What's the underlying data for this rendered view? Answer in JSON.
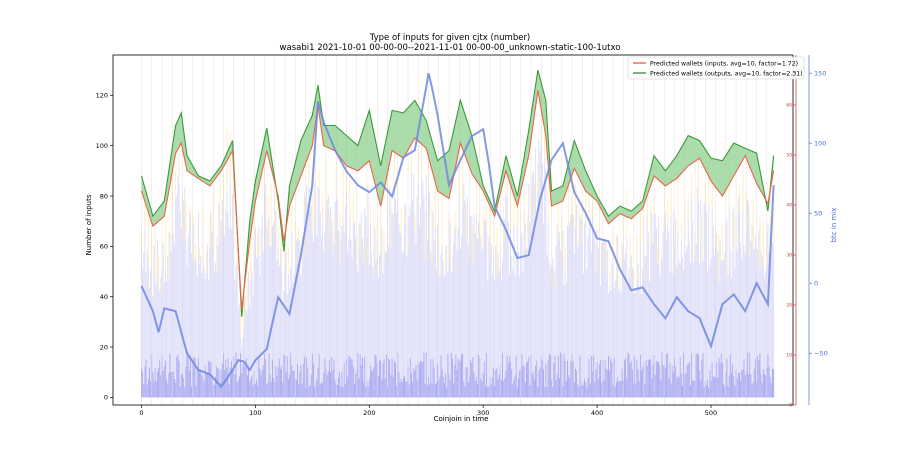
{
  "chart_data": {
    "type": "line",
    "title": "Type of inputs for given cjtx (number)",
    "subtitle": "wasabi1 2021-10-01 00-00-00--2021-11-01 00-00-00_unknown-static-100-1utxo",
    "xlabel": "Coinjoin in time",
    "ylabel": "Number of inputs",
    "y2label": "btc in mix",
    "xlim": [
      -25,
      572
    ],
    "ylim": [
      -3,
      136
    ],
    "y2lim": [
      -87,
      163
    ],
    "y3lim": [
      0,
      70
    ],
    "x_ticks": [
      "0",
      "100",
      "200",
      "300",
      "400",
      "500"
    ],
    "y_ticks": [
      "0",
      "20",
      "40",
      "60",
      "80",
      "100",
      "120"
    ],
    "y2_ticks": [
      "−50",
      "0",
      "50",
      "100",
      "150"
    ],
    "y3_ticks": [
      "0",
      "10",
      "20",
      "30",
      "40",
      "50",
      "60"
    ],
    "grid": "vertical",
    "legend_position": "top-right",
    "legend": [
      "Predicted wallets (inputs, avg=10, factor=1.72)",
      "Predicted wallets (outputs, avg=10, factor=2.31)"
    ],
    "colors": {
      "inputs_line": "#e8664a",
      "outputs_line": "#3a9a3a",
      "outputs_fill": "#8fd08f",
      "inputs_fill": "#f08080",
      "btc_line": "#6f87e0",
      "bars_fresh": "#9a9af0",
      "bars_mid": "#dcdcfa",
      "bars_top": "#fde7a8",
      "y2_axis": "#4a6fd6",
      "y3_axis": "#cc3333"
    },
    "series": [
      {
        "name": "Predicted wallets (inputs, avg=10, factor=1.72)",
        "x": [
          0,
          10,
          20,
          30,
          35,
          40,
          50,
          60,
          70,
          80,
          88,
          95,
          100,
          110,
          120,
          125,
          130,
          140,
          150,
          155,
          160,
          170,
          180,
          190,
          200,
          210,
          220,
          230,
          240,
          250,
          260,
          270,
          280,
          290,
          300,
          310,
          320,
          330,
          340,
          348,
          355,
          360,
          370,
          380,
          390,
          400,
          410,
          420,
          430,
          440,
          450,
          460,
          470,
          480,
          490,
          500,
          510,
          520,
          530,
          540,
          550,
          555
        ],
        "values": [
          82,
          68,
          72,
          97,
          101,
          90,
          87,
          84,
          90,
          98,
          35,
          62,
          78,
          98,
          80,
          62,
          76,
          88,
          100,
          116,
          100,
          98,
          92,
          90,
          94,
          76,
          98,
          95,
          103,
          99,
          82,
          79,
          101,
          89,
          82,
          72,
          90,
          76,
          96,
          122,
          104,
          76,
          78,
          91,
          82,
          78,
          69,
          73,
          71,
          75,
          88,
          84,
          87,
          92,
          95,
          86,
          80,
          88,
          96,
          85,
          77,
          90
        ]
      },
      {
        "name": "Predicted wallets (outputs, avg=10, factor=2.31)",
        "x": [
          0,
          10,
          20,
          30,
          35,
          40,
          50,
          60,
          70,
          80,
          88,
          95,
          100,
          110,
          120,
          125,
          130,
          140,
          150,
          155,
          160,
          170,
          180,
          190,
          200,
          210,
          220,
          230,
          240,
          250,
          260,
          270,
          280,
          290,
          300,
          310,
          320,
          330,
          340,
          348,
          355,
          360,
          370,
          380,
          390,
          400,
          410,
          420,
          430,
          440,
          450,
          460,
          470,
          480,
          490,
          500,
          510,
          520,
          530,
          540,
          550,
          555
        ],
        "values": [
          88,
          72,
          78,
          108,
          113,
          96,
          88,
          86,
          92,
          102,
          32,
          70,
          86,
          107,
          78,
          58,
          84,
          102,
          112,
          124,
          108,
          108,
          104,
          100,
          114,
          92,
          114,
          113,
          118,
          110,
          94,
          98,
          118,
          104,
          84,
          74,
          96,
          80,
          106,
          130,
          118,
          82,
          84,
          102,
          90,
          80,
          72,
          76,
          74,
          78,
          96,
          90,
          96,
          104,
          102,
          95,
          94,
          101,
          99,
          97,
          74,
          96
        ]
      },
      {
        "name": "btc in mix",
        "x": [
          0,
          10,
          15,
          20,
          30,
          40,
          50,
          60,
          70,
          80,
          85,
          90,
          95,
          100,
          110,
          115,
          120,
          130,
          140,
          150,
          155,
          160,
          170,
          180,
          190,
          200,
          210,
          220,
          230,
          240,
          250,
          252,
          255,
          260,
          270,
          280,
          290,
          300,
          305,
          310,
          320,
          330,
          340,
          350,
          360,
          370,
          380,
          390,
          400,
          410,
          420,
          430,
          440,
          450,
          460,
          470,
          480,
          490,
          500,
          505,
          510,
          520,
          530,
          540,
          550,
          555
        ],
        "values": [
          -2,
          -20,
          -35,
          -18,
          -20,
          -50,
          -62,
          -65,
          -74,
          -62,
          -55,
          -56,
          -62,
          -55,
          -47,
          -28,
          -10,
          -22,
          20,
          70,
          130,
          115,
          95,
          80,
          70,
          65,
          72,
          62,
          90,
          95,
          140,
          150,
          140,
          120,
          70,
          88,
          105,
          110,
          85,
          55,
          38,
          18,
          20,
          60,
          88,
          100,
          65,
          50,
          32,
          30,
          10,
          -5,
          -3,
          -15,
          -25,
          -10,
          -20,
          -25,
          -45,
          -30,
          -15,
          -8,
          -20,
          0,
          -15,
          70
        ]
      }
    ]
  }
}
